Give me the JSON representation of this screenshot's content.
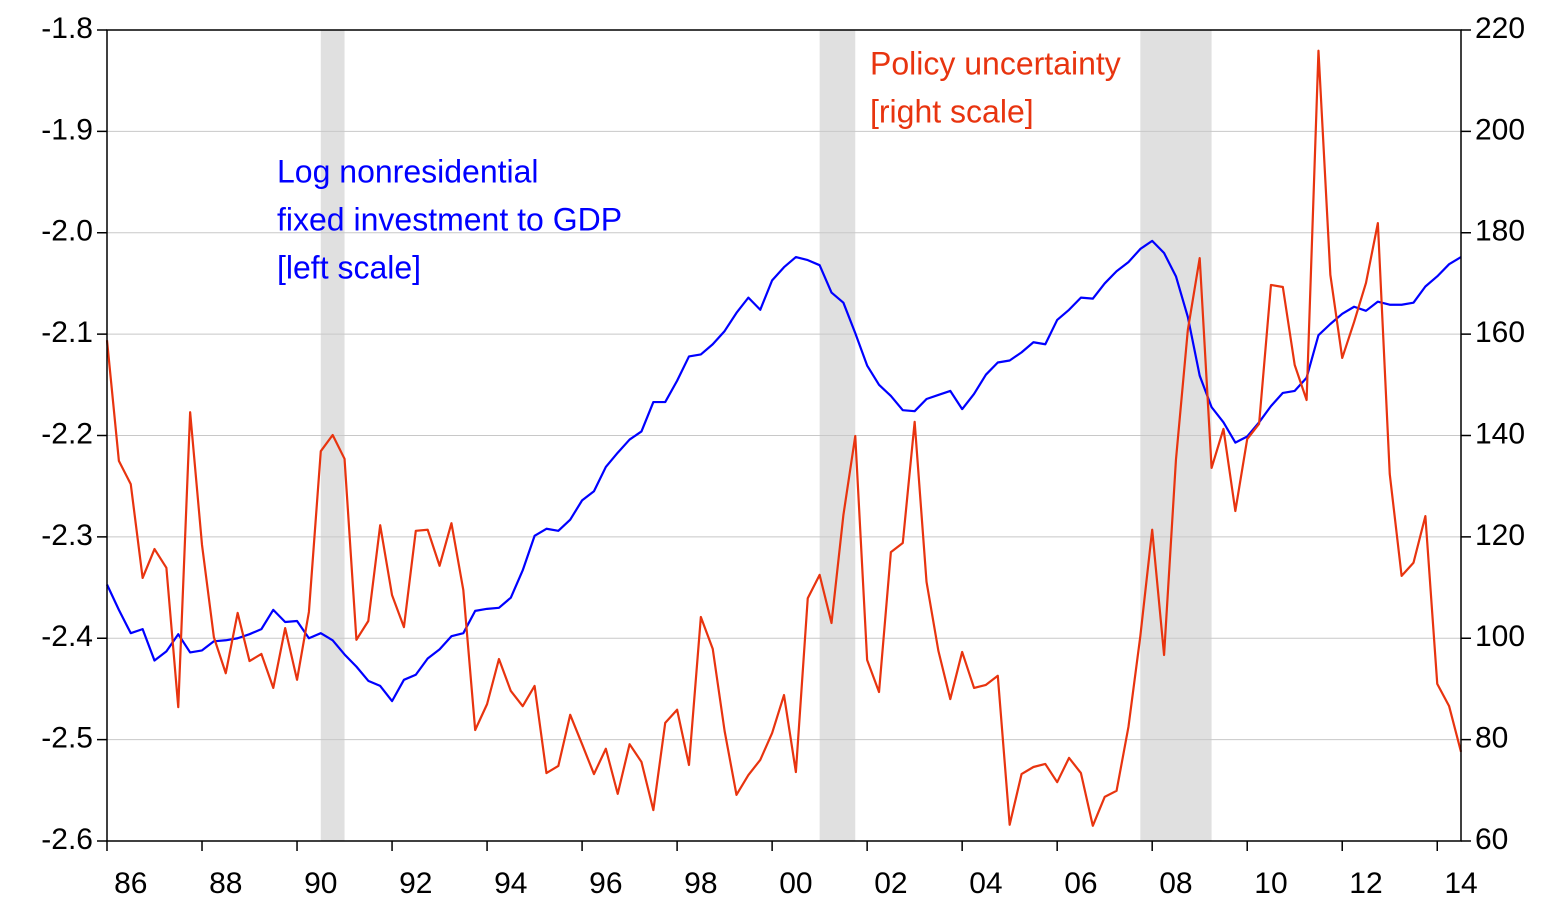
{
  "chart_data": {
    "type": "line",
    "x": [
      1986,
      1986.25,
      1986.5,
      1986.75,
      1987,
      1987.25,
      1987.5,
      1987.75,
      1988,
      1988.25,
      1988.5,
      1988.75,
      1989,
      1989.25,
      1989.5,
      1989.75,
      1990,
      1990.25,
      1990.5,
      1990.75,
      1991,
      1991.25,
      1991.5,
      1991.75,
      1992,
      1992.25,
      1992.5,
      1992.75,
      1993,
      1993.25,
      1993.5,
      1993.75,
      1994,
      1994.25,
      1994.5,
      1994.75,
      1995,
      1995.25,
      1995.5,
      1995.75,
      1996,
      1996.25,
      1996.5,
      1996.75,
      1997,
      1997.25,
      1997.5,
      1997.75,
      1998,
      1998.25,
      1998.5,
      1998.75,
      1999,
      1999.25,
      1999.5,
      1999.75,
      2000,
      2000.25,
      2000.5,
      2000.75,
      2001,
      2001.25,
      2001.5,
      2001.75,
      2002,
      2002.25,
      2002.5,
      2002.75,
      2003,
      2003.25,
      2003.5,
      2003.75,
      2004,
      2004.25,
      2004.5,
      2004.75,
      2005,
      2005.25,
      2005.5,
      2005.75,
      2006,
      2006.25,
      2006.5,
      2006.75,
      2007,
      2007.25,
      2007.5,
      2007.75,
      2008,
      2008.25,
      2008.5,
      2008.75,
      2009,
      2009.25,
      2009.5,
      2009.75,
      2010,
      2010.25,
      2010.5,
      2010.75,
      2011,
      2011.25,
      2011.5,
      2011.75,
      2012,
      2012.25,
      2012.5,
      2012.75,
      2013,
      2013.25,
      2013.5,
      2013.75,
      2014,
      2014.25,
      2014.5
    ],
    "series": [
      {
        "label": [
          "Log nonresidential",
          "fixed investment to GDP",
          "[left scale]"
        ],
        "color": "#0000ff",
        "axis": "y",
        "values": [
          -2.347,
          -2.372,
          -2.395,
          -2.391,
          -2.422,
          -2.413,
          -2.396,
          -2.414,
          -2.412,
          -2.403,
          -2.402,
          -2.4,
          -2.396,
          -2.391,
          -2.372,
          -2.384,
          -2.383,
          -2.4,
          -2.395,
          -2.402,
          -2.416,
          -2.428,
          -2.442,
          -2.447,
          -2.462,
          -2.441,
          -2.436,
          -2.42,
          -2.411,
          -2.398,
          -2.395,
          -2.373,
          -2.371,
          -2.37,
          -2.36,
          -2.333,
          -2.299,
          -2.292,
          -2.294,
          -2.283,
          -2.264,
          -2.255,
          -2.231,
          -2.217,
          -2.204,
          -2.196,
          -2.167,
          -2.167,
          -2.146,
          -2.122,
          -2.12,
          -2.11,
          -2.097,
          -2.079,
          -2.064,
          -2.076,
          -2.047,
          -2.034,
          -2.024,
          -2.027,
          -2.032,
          -2.059,
          -2.069,
          -2.099,
          -2.131,
          -2.15,
          -2.161,
          -2.175,
          -2.176,
          -2.164,
          -2.16,
          -2.156,
          -2.174,
          -2.159,
          -2.14,
          -2.128,
          -2.126,
          -2.118,
          -2.108,
          -2.11,
          -2.086,
          -2.076,
          -2.064,
          -2.065,
          -2.05,
          -2.038,
          -2.029,
          -2.016,
          -2.008,
          -2.02,
          -2.043,
          -2.083,
          -2.141,
          -2.172,
          -2.187,
          -2.207,
          -2.201,
          -2.187,
          -2.171,
          -2.158,
          -2.156,
          -2.143,
          -2.101,
          -2.09,
          -2.08,
          -2.073,
          -2.077,
          -2.068,
          -2.071,
          -2.071,
          -2.069,
          -2.053,
          -2.043,
          -2.031,
          -2.024
        ]
      },
      {
        "label": [
          "Policy uncertainty",
          "[right scale]"
        ],
        "color": "#e8340f",
        "axis": "y2",
        "values": [
          158.8,
          135,
          130.4,
          111.9,
          117.6,
          113.9,
          86.4,
          144.6,
          118.4,
          100.2,
          93.1,
          105,
          95.5,
          96.9,
          90.2,
          102,
          91.8,
          105.2,
          136.9,
          140.1,
          135.4,
          99.7,
          103.4,
          122.3,
          108.5,
          102.2,
          121.2,
          121.4,
          114.3,
          122.7,
          109.5,
          81.9,
          87,
          95.9,
          89.6,
          86.6,
          90.6,
          73.4,
          74.8,
          84.9,
          79.1,
          73.2,
          78.2,
          69.3,
          79.1,
          75.6,
          66.1,
          83.3,
          85.9,
          75,
          104.2,
          97.9,
          81.7,
          69.1,
          73,
          76,
          81.3,
          88.8,
          73.6,
          107.9,
          112.5,
          103,
          124.3,
          139.9,
          95.7,
          89.4,
          117,
          118.8,
          142.7,
          111.1,
          97.5,
          88,
          97.3,
          90.2,
          90.8,
          92.6,
          63.2,
          73.2,
          74.6,
          75.2,
          71.6,
          76.4,
          73.4,
          63,
          68.7,
          69.9,
          82.5,
          100.4,
          121.4,
          96.7,
          135.2,
          160.8,
          175,
          133.6,
          141.3,
          125.1,
          139.3,
          142.3,
          169.7,
          169.3,
          153.9,
          147,
          215.9,
          171.7,
          155.3,
          162.4,
          170.1,
          181.9,
          132.4,
          112.3,
          114.9,
          124.1,
          91,
          86.6,
          77.6
        ]
      }
    ],
    "shaded_periods": [
      [
        1990.5,
        1991.0
      ],
      [
        2001.0,
        2001.75
      ],
      [
        2007.75,
        2009.25
      ]
    ],
    "shade_color": "#e0e0e0",
    "xlim": [
      1986,
      2014.5
    ],
    "xticks": [
      {
        "value": 1986,
        "label": "86"
      },
      {
        "value": 1988,
        "label": "88"
      },
      {
        "value": 1990,
        "label": "90"
      },
      {
        "value": 1992,
        "label": "92"
      },
      {
        "value": 1994,
        "label": "94"
      },
      {
        "value": 1996,
        "label": "96"
      },
      {
        "value": 1998,
        "label": "98"
      },
      {
        "value": 2000,
        "label": "00"
      },
      {
        "value": 2002,
        "label": "02"
      },
      {
        "value": 2004,
        "label": "04"
      },
      {
        "value": 2006,
        "label": "06"
      },
      {
        "value": 2008,
        "label": "08"
      },
      {
        "value": 2010,
        "label": "10"
      },
      {
        "value": 2012,
        "label": "12"
      },
      {
        "value": 2014,
        "label": "14"
      }
    ],
    "ylim": [
      -2.6,
      -1.8
    ],
    "yticks": [
      -2.6,
      -2.5,
      -2.4,
      -2.3,
      -2.2,
      -2.1,
      {
        "value": -2,
        "label": "-2.0"
      },
      -1.9,
      -1.8
    ],
    "y2lim": [
      60,
      220
    ],
    "y2ticks": [
      60,
      80,
      100,
      120,
      140,
      160,
      180,
      200,
      220
    ],
    "grid": true
  }
}
